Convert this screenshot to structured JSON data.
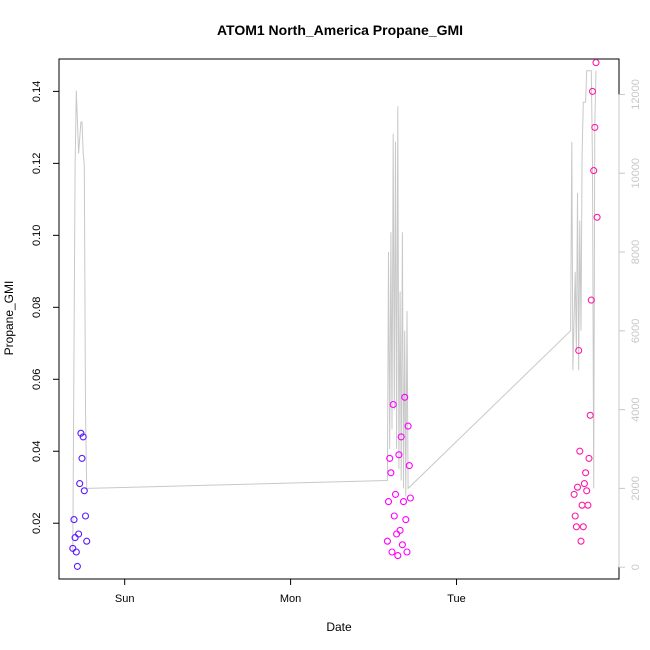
{
  "chart_data": {
    "type": "scatter",
    "title": "ATOM1 North_America Propane_GMI",
    "xlabel": "Date",
    "ylabel": "Propane_GMI",
    "x_ticks": [
      "Sun",
      "Mon",
      "Tue"
    ],
    "x_range": [
      "Sat 14:30",
      "Tue 23:30"
    ],
    "ylim": [
      0.0045,
      0.149
    ],
    "y_ticks": [
      0.02,
      0.04,
      0.06,
      0.08,
      0.1,
      0.12,
      0.14
    ],
    "y_ticks_text": [
      "0.02",
      "0.04",
      "0.06",
      "0.08",
      "0.10",
      "0.12",
      "0.14"
    ],
    "y2lim": [
      -300,
      12900
    ],
    "y2_ticks": [
      0,
      2000,
      4000,
      6000,
      8000,
      10000,
      12000
    ],
    "y2_ticks_text": [
      "0",
      "2000",
      "4000",
      "6000",
      "8000",
      "10000",
      "12000"
    ],
    "grid": false,
    "legend": "none",
    "colors": {
      "series_1": "#5a1aff",
      "series_2": "#ff00ff",
      "series_3": "#ff1aa8",
      "altitude_line": "#c8c8c8"
    },
    "series": [
      {
        "marker": "circle",
        "points": [
          {
            "x": "Sat 16:30",
            "y": 0.013
          },
          {
            "x": "Sat 16:40",
            "y": 0.021
          },
          {
            "x": "Sat 16:50",
            "y": 0.016
          },
          {
            "x": "Sat 17:00",
            "y": 0.012
          },
          {
            "x": "Sat 17:10",
            "y": 0.008
          },
          {
            "x": "Sat 17:20",
            "y": 0.017
          },
          {
            "x": "Sat 17:30",
            "y": 0.031
          },
          {
            "x": "Sat 17:40",
            "y": 0.045
          },
          {
            "x": "Sat 17:50",
            "y": 0.038
          },
          {
            "x": "Sat 18:00",
            "y": 0.044
          },
          {
            "x": "Sat 18:10",
            "y": 0.029
          },
          {
            "x": "Sat 18:20",
            "y": 0.022
          },
          {
            "x": "Sat 18:30",
            "y": 0.015
          }
        ]
      },
      {
        "marker": "circle",
        "points": [
          {
            "x": "Mon 14:00",
            "y": 0.015
          },
          {
            "x": "Mon 14:10",
            "y": 0.026
          },
          {
            "x": "Mon 14:20",
            "y": 0.038
          },
          {
            "x": "Mon 14:30",
            "y": 0.034
          },
          {
            "x": "Mon 14:40",
            "y": 0.012
          },
          {
            "x": "Mon 14:50",
            "y": 0.053
          },
          {
            "x": "Mon 15:00",
            "y": 0.022
          },
          {
            "x": "Mon 15:10",
            "y": 0.028
          },
          {
            "x": "Mon 15:20",
            "y": 0.017
          },
          {
            "x": "Mon 15:30",
            "y": 0.011
          },
          {
            "x": "Mon 15:40",
            "y": 0.039
          },
          {
            "x": "Mon 15:50",
            "y": 0.018
          },
          {
            "x": "Mon 16:00",
            "y": 0.044
          },
          {
            "x": "Mon 16:10",
            "y": 0.014
          },
          {
            "x": "Mon 16:20",
            "y": 0.026
          },
          {
            "x": "Mon 16:30",
            "y": 0.055
          },
          {
            "x": "Mon 16:40",
            "y": 0.021
          },
          {
            "x": "Mon 16:50",
            "y": 0.012
          },
          {
            "x": "Mon 17:00",
            "y": 0.047
          },
          {
            "x": "Mon 17:10",
            "y": 0.036
          },
          {
            "x": "Mon 17:20",
            "y": 0.027
          }
        ]
      },
      {
        "marker": "circle",
        "points": [
          {
            "x": "Tue 17:00",
            "y": 0.028
          },
          {
            "x": "Tue 17:10",
            "y": 0.022
          },
          {
            "x": "Tue 17:20",
            "y": 0.019
          },
          {
            "x": "Tue 17:30",
            "y": 0.03
          },
          {
            "x": "Tue 17:40",
            "y": 0.068
          },
          {
            "x": "Tue 17:50",
            "y": 0.04
          },
          {
            "x": "Tue 18:00",
            "y": 0.015
          },
          {
            "x": "Tue 18:10",
            "y": 0.025
          },
          {
            "x": "Tue 18:20",
            "y": 0.019
          },
          {
            "x": "Tue 18:30",
            "y": 0.031
          },
          {
            "x": "Tue 18:40",
            "y": 0.034
          },
          {
            "x": "Tue 18:50",
            "y": 0.029
          },
          {
            "x": "Tue 19:00",
            "y": 0.025
          },
          {
            "x": "Tue 19:10",
            "y": 0.038
          },
          {
            "x": "Tue 19:20",
            "y": 0.05
          },
          {
            "x": "Tue 19:30",
            "y": 0.082
          },
          {
            "x": "Tue 19:40",
            "y": 0.14
          },
          {
            "x": "Tue 19:50",
            "y": 0.118
          },
          {
            "x": "Tue 20:00",
            "y": 0.13
          },
          {
            "x": "Tue 20:10",
            "y": 0.148
          },
          {
            "x": "Tue 20:20",
            "y": 0.105
          }
        ]
      },
      {
        "axis": "right",
        "marker": "line",
        "points": [
          {
            "x": "Sat 16:30",
            "y": 400
          },
          {
            "x": "Sat 16:50",
            "y": 10200
          },
          {
            "x": "Sat 17:00",
            "y": 12100
          },
          {
            "x": "Sat 17:20",
            "y": 10500
          },
          {
            "x": "Sat 17:40",
            "y": 11300
          },
          {
            "x": "Sat 17:50",
            "y": 11300
          },
          {
            "x": "Sat 18:00",
            "y": 10500
          },
          {
            "x": "Sat 18:10",
            "y": 10200
          },
          {
            "x": "Sat 18:20",
            "y": 4000
          },
          {
            "x": "Sat 18:30",
            "y": 2000
          },
          {
            "x": "Mon 14:00",
            "y": 2200
          },
          {
            "x": "Mon 14:10",
            "y": 8000
          },
          {
            "x": "Mon 14:20",
            "y": 3000
          },
          {
            "x": "Mon 14:30",
            "y": 8500
          },
          {
            "x": "Mon 14:40",
            "y": 3500
          },
          {
            "x": "Mon 14:50",
            "y": 11000
          },
          {
            "x": "Mon 15:00",
            "y": 4000
          },
          {
            "x": "Mon 15:10",
            "y": 10800
          },
          {
            "x": "Mon 15:20",
            "y": 3000
          },
          {
            "x": "Mon 15:30",
            "y": 11700
          },
          {
            "x": "Mon 15:40",
            "y": 2500
          },
          {
            "x": "Mon 15:50",
            "y": 7000
          },
          {
            "x": "Mon 16:00",
            "y": 2200
          },
          {
            "x": "Mon 16:10",
            "y": 8500
          },
          {
            "x": "Mon 16:20",
            "y": 2000
          },
          {
            "x": "Mon 16:30",
            "y": 6000
          },
          {
            "x": "Mon 16:40",
            "y": 1800
          },
          {
            "x": "Mon 16:50",
            "y": 6500
          },
          {
            "x": "Mon 17:00",
            "y": 2000
          },
          {
            "x": "Tue 16:30",
            "y": 6000
          },
          {
            "x": "Tue 16:40",
            "y": 10800
          },
          {
            "x": "Tue 16:50",
            "y": 5000
          },
          {
            "x": "Tue 17:10",
            "y": 7500
          },
          {
            "x": "Tue 17:20",
            "y": 5500
          },
          {
            "x": "Tue 17:30",
            "y": 9500
          },
          {
            "x": "Tue 17:40",
            "y": 5000
          },
          {
            "x": "Tue 17:50",
            "y": 8800
          },
          {
            "x": "Tue 18:00",
            "y": 6000
          },
          {
            "x": "Tue 18:10",
            "y": 10500
          },
          {
            "x": "Tue 18:20",
            "y": 11800
          },
          {
            "x": "Tue 18:40",
            "y": 11800
          },
          {
            "x": "Tue 18:50",
            "y": 12600
          },
          {
            "x": "Tue 19:30",
            "y": 12600
          },
          {
            "x": "Tue 19:40",
            "y": 10200
          },
          {
            "x": "Tue 19:50",
            "y": 2000
          },
          {
            "x": "Tue 20:00",
            "y": 11200
          },
          {
            "x": "Tue 20:10",
            "y": 12600
          }
        ]
      }
    ]
  }
}
